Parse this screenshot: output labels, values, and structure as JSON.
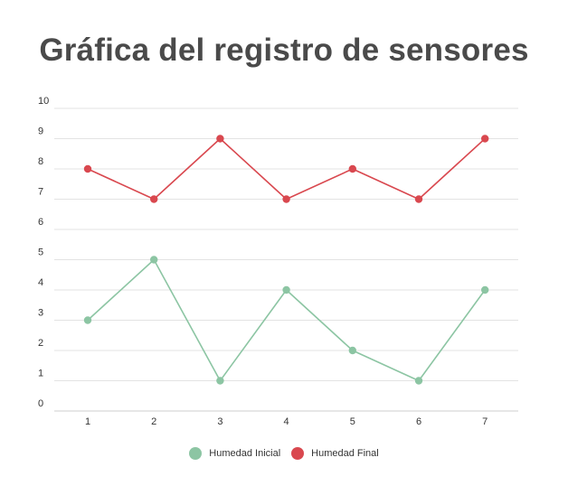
{
  "chart_data": {
    "type": "line",
    "title": "Gráfica del registro de sensores",
    "xlabel": "",
    "ylabel": "",
    "x": [
      1,
      2,
      3,
      4,
      5,
      6,
      7
    ],
    "ylim": [
      0,
      10
    ],
    "yticks": [
      0,
      1,
      2,
      3,
      4,
      5,
      6,
      7,
      8,
      9,
      10
    ],
    "grid": true,
    "legend": "bottom-center",
    "series": [
      {
        "name": "Humedad Inicial",
        "values": [
          3,
          5,
          1,
          4,
          2,
          1,
          4
        ],
        "color": "#8cc5a3"
      },
      {
        "name": "Humedad Final",
        "values": [
          8,
          7,
          9,
          7,
          8,
          7,
          9
        ],
        "color": "#d9484f"
      }
    ]
  }
}
